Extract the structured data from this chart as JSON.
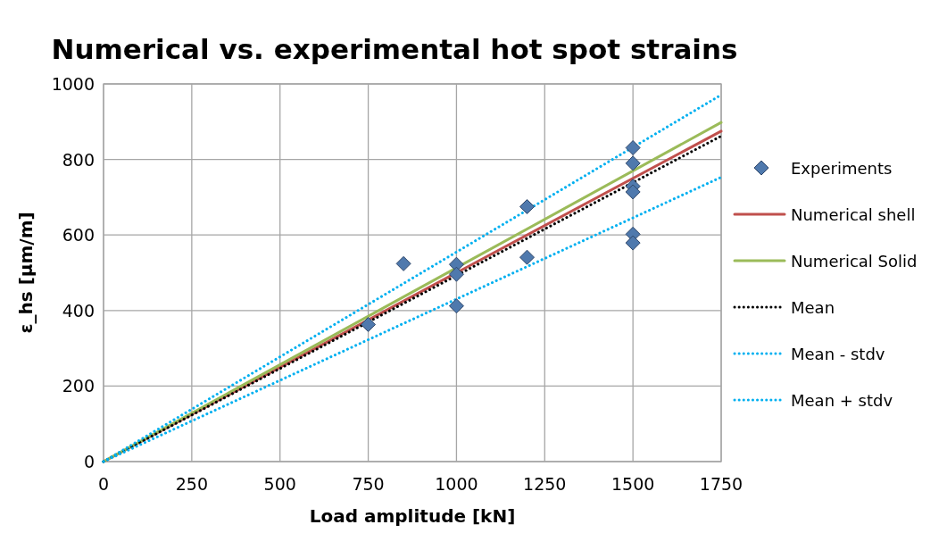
{
  "chart_data": {
    "type": "scatter",
    "title": "Numerical vs. experimental hot spot strains",
    "xlabel": "Load amplitude [kN]",
    "ylabel": "ε_hs [µm/m]",
    "xlim": [
      0,
      1750
    ],
    "ylim": [
      0,
      1000
    ],
    "xticks": [
      0,
      250,
      500,
      750,
      1000,
      1250,
      1500,
      1750
    ],
    "yticks": [
      0,
      200,
      400,
      600,
      800,
      1000
    ],
    "grid": true,
    "legend": "right",
    "series": [
      {
        "name": "Experiments",
        "marker": "diamond",
        "color": "#4f79ad",
        "x": [
          750,
          850,
          1000,
          1000,
          1000,
          1200,
          1200,
          1500,
          1500,
          1500,
          1500,
          1500,
          1500
        ],
        "values": [
          363,
          524,
          522,
          496,
          412,
          675,
          541,
          831,
          790,
          729,
          714,
          602,
          579
        ]
      },
      {
        "name": "Numerical shell",
        "type": "line",
        "line_style": "solid",
        "color": "#c0504d",
        "x": [
          0,
          1750
        ],
        "values": [
          0,
          875
        ]
      },
      {
        "name": "Numerical Solid",
        "type": "line",
        "line_style": "solid",
        "color": "#9bbb59",
        "x": [
          0,
          1750
        ],
        "values": [
          0,
          898
        ]
      },
      {
        "name": "Mean",
        "type": "line",
        "line_style": "dotted",
        "color": "#000000",
        "x": [
          0,
          1750
        ],
        "values": [
          0,
          862
        ]
      },
      {
        "name": "Mean - stdv",
        "type": "line",
        "line_style": "dotted",
        "color": "#00b0f0",
        "x": [
          0,
          1750
        ],
        "values": [
          0,
          753
        ]
      },
      {
        "name": "Mean + stdv",
        "type": "line",
        "line_style": "dotted",
        "color": "#00b0f0",
        "x": [
          0,
          1750
        ],
        "values": [
          0,
          971
        ]
      }
    ]
  }
}
